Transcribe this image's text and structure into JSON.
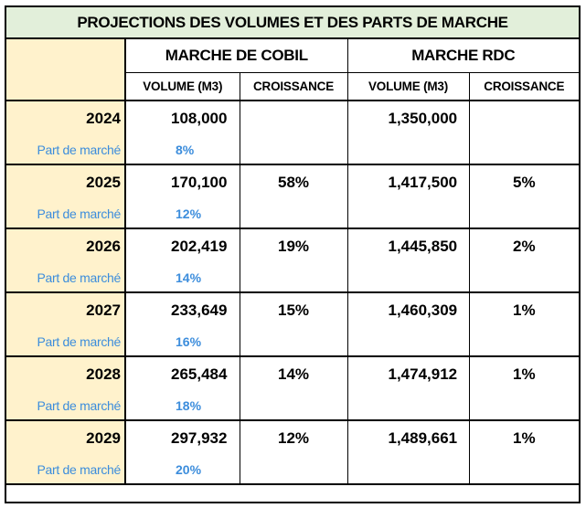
{
  "title": "PROJECTIONS DES VOLUMES ET DES PARTS DE MARCHE",
  "groups": {
    "cobil": "MARCHE DE COBIL",
    "rdc": "MARCHE RDC"
  },
  "subheaders": {
    "volume": "VOLUME (M3)",
    "growth": "CROISSANCE"
  },
  "share_label": "Part de marché",
  "rows": [
    {
      "year": "2024",
      "cobil_volume": "108,000",
      "cobil_growth": "",
      "rdc_volume": "1,350,000",
      "rdc_growth": "",
      "share": "8%"
    },
    {
      "year": "2025",
      "cobil_volume": "170,100",
      "cobil_growth": "58%",
      "rdc_volume": "1,417,500",
      "rdc_growth": "5%",
      "share": "12%"
    },
    {
      "year": "2026",
      "cobil_volume": "202,419",
      "cobil_growth": "19%",
      "rdc_volume": "1,445,850",
      "rdc_growth": "2%",
      "share": "14%"
    },
    {
      "year": "2027",
      "cobil_volume": "233,649",
      "cobil_growth": "15%",
      "rdc_volume": "1,460,309",
      "rdc_growth": "1%",
      "share": "16%"
    },
    {
      "year": "2028",
      "cobil_volume": "265,484",
      "cobil_growth": "14%",
      "rdc_volume": "1,474,912",
      "rdc_growth": "1%",
      "share": "18%"
    },
    {
      "year": "2029",
      "cobil_volume": "297,932",
      "cobil_growth": "12%",
      "rdc_volume": "1,489,661",
      "rdc_growth": "1%",
      "share": "20%"
    }
  ],
  "colors": {
    "title_bg": "#e2efda",
    "year_bg": "#fff2cc",
    "share_text": "#3c8ddc"
  }
}
